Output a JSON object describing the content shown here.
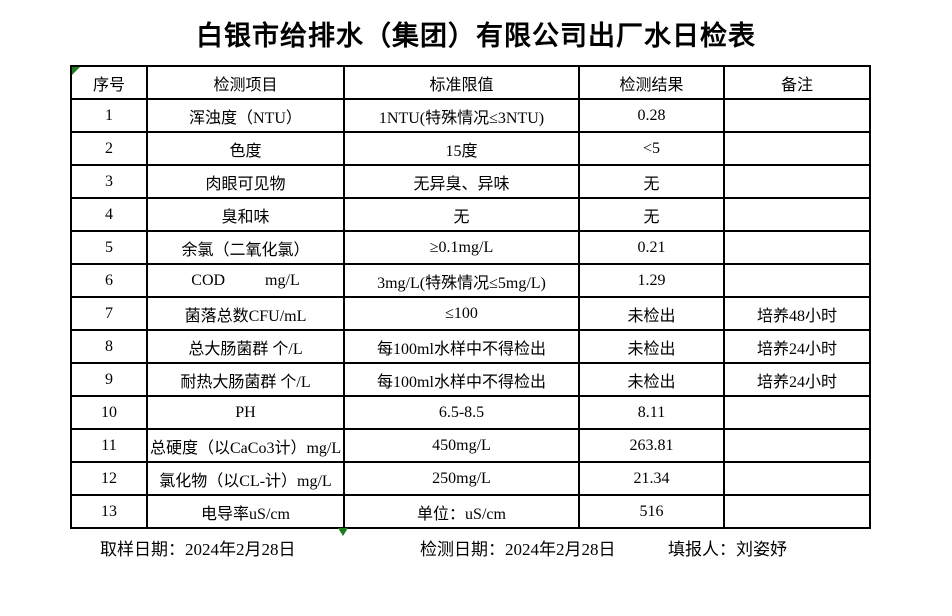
{
  "page": {
    "title": "白银市给排水（集团）有限公司出厂水日检表"
  },
  "markers": {
    "corner_marker_color": "#1e7d1e",
    "bottom_marker_color": "#1e7d1e"
  },
  "table": {
    "headers": [
      "序号",
      "检测项目",
      "标准限值",
      "检测结果",
      "备注"
    ],
    "rows": [
      {
        "no": "1",
        "item": "浑浊度（NTU）",
        "limit": "1NTU(特殊情况≤3NTU)",
        "result": "0.28",
        "remark": ""
      },
      {
        "no": "2",
        "item": "色度",
        "limit": "15度",
        "result": "<5",
        "remark": ""
      },
      {
        "no": "3",
        "item": "肉眼可见物",
        "limit": "无异臭、异味",
        "result": "无",
        "remark": ""
      },
      {
        "no": "4",
        "item": "臭和味",
        "limit": "无",
        "result": "无",
        "remark": ""
      },
      {
        "no": "5",
        "item": "余氯（二氧化氯）",
        "limit": "≥0.1mg/L",
        "result": "0.21",
        "remark": ""
      },
      {
        "no": "6",
        "item": "COD          mg/L",
        "limit": "3mg/L(特殊情况≤5mg/L)",
        "result": "1.29",
        "remark": ""
      },
      {
        "no": "7",
        "item": "菌落总数CFU/mL",
        "limit": "≤100",
        "result": "未检出",
        "remark": "培养48小时"
      },
      {
        "no": "8",
        "item": "总大肠菌群 个/L",
        "limit": "每100ml水样中不得检出",
        "result": "未检出",
        "remark": "培养24小时"
      },
      {
        "no": "9",
        "item": "耐热大肠菌群 个/L",
        "limit": "每100ml水样中不得检出",
        "result": "未检出",
        "remark": "培养24小时"
      },
      {
        "no": "10",
        "item": "PH",
        "limit": "6.5-8.5",
        "result": "8.11",
        "remark": ""
      },
      {
        "no": "11",
        "item": "总硬度（以CaCo3计）mg/L",
        "limit": "450mg/L",
        "result": "263.81",
        "remark": ""
      },
      {
        "no": "12",
        "item": "氯化物（以CL-计）mg/L",
        "limit": "250mg/L",
        "result": "21.34",
        "remark": ""
      },
      {
        "no": "13",
        "item": "电导率uS/cm",
        "limit": "单位：uS/cm",
        "result": "516",
        "remark": ""
      }
    ]
  },
  "footer": {
    "sampling_date": "取样日期：2024年2月28日",
    "test_date": "检测日期：2024年2月28日",
    "reporter": "填报人：刘姿妤"
  }
}
